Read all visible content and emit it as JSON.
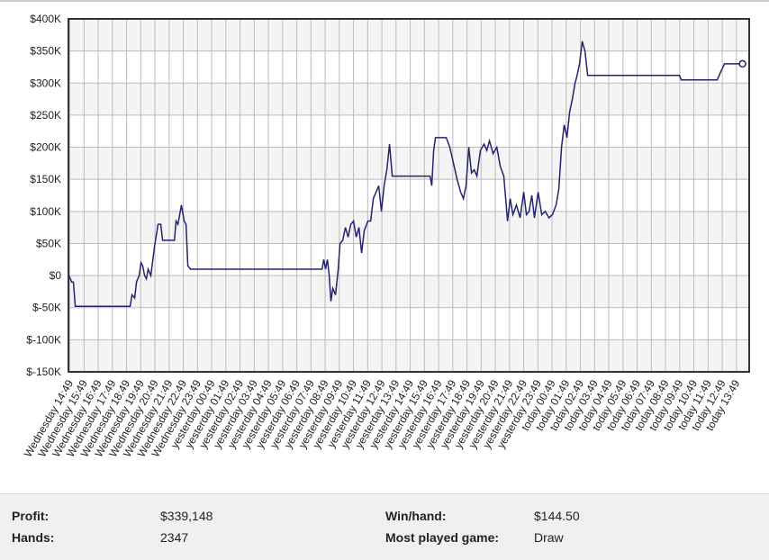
{
  "chart_data": {
    "type": "line",
    "color": "#24246e",
    "grid": true,
    "xlim": [
      -0.1,
      47.9
    ],
    "xticks": [
      {
        "value": 0,
        "label": "Wednesday 14:49"
      },
      {
        "value": 1,
        "label": "Wednesday 15:49"
      },
      {
        "value": 2,
        "label": "Wednesday 16:49"
      },
      {
        "value": 3,
        "label": "Wednesday 17:49"
      },
      {
        "value": 4,
        "label": "Wednesday 18:49"
      },
      {
        "value": 5,
        "label": "Wednesday 19:49"
      },
      {
        "value": 6,
        "label": "Wednesday 20:49"
      },
      {
        "value": 7,
        "label": "Wednesday 21:49"
      },
      {
        "value": 8,
        "label": "Wednesday 22:49"
      },
      {
        "value": 9,
        "label": "Wednesday 23:49"
      },
      {
        "value": 10,
        "label": "yesterday 00:49"
      },
      {
        "value": 11,
        "label": "yesterday 01:49"
      },
      {
        "value": 12,
        "label": "yesterday 02:49"
      },
      {
        "value": 13,
        "label": "yesterday 03:49"
      },
      {
        "value": 14,
        "label": "yesterday 04:49"
      },
      {
        "value": 15,
        "label": "yesterday 05:49"
      },
      {
        "value": 16,
        "label": "yesterday 06:49"
      },
      {
        "value": 17,
        "label": "yesterday 07:49"
      },
      {
        "value": 18,
        "label": "yesterday 08:49"
      },
      {
        "value": 19,
        "label": "yesterday 09:49"
      },
      {
        "value": 20,
        "label": "yesterday 10:49"
      },
      {
        "value": 21,
        "label": "yesterday 11:49"
      },
      {
        "value": 22,
        "label": "yesterday 12:49"
      },
      {
        "value": 23,
        "label": "yesterday 13:49"
      },
      {
        "value": 24,
        "label": "yesterday 14:49"
      },
      {
        "value": 25,
        "label": "yesterday 15:49"
      },
      {
        "value": 26,
        "label": "yesterday 16:49"
      },
      {
        "value": 27,
        "label": "yesterday 17:49"
      },
      {
        "value": 28,
        "label": "yesterday 18:49"
      },
      {
        "value": 29,
        "label": "yesterday 19:49"
      },
      {
        "value": 30,
        "label": "yesterday 20:49"
      },
      {
        "value": 31,
        "label": "yesterday 21:49"
      },
      {
        "value": 32,
        "label": "yesterday 22:49"
      },
      {
        "value": 33,
        "label": "yesterday 23:49"
      },
      {
        "value": 34,
        "label": "today 00:49"
      },
      {
        "value": 35,
        "label": "today 01:49"
      },
      {
        "value": 36,
        "label": "today 02:49"
      },
      {
        "value": 37,
        "label": "today 03:49"
      },
      {
        "value": 38,
        "label": "today 04:49"
      },
      {
        "value": 39,
        "label": "today 05:49"
      },
      {
        "value": 40,
        "label": "today 06:49"
      },
      {
        "value": 41,
        "label": "today 07:49"
      },
      {
        "value": 42,
        "label": "today 08:49"
      },
      {
        "value": 43,
        "label": "today 09:49"
      },
      {
        "value": 44,
        "label": "today 10:49"
      },
      {
        "value": 45,
        "label": "today 11:49"
      },
      {
        "value": 46,
        "label": "today 12:49"
      },
      {
        "value": 47,
        "label": "today 13:49"
      }
    ],
    "ylim": [
      -150000,
      400000
    ],
    "yticks": [
      {
        "value": -150000,
        "label": "$-150K"
      },
      {
        "value": -100000,
        "label": "$-100K"
      },
      {
        "value": -50000,
        "label": "$-50K"
      },
      {
        "value": 0,
        "label": "$0"
      },
      {
        "value": 50000,
        "label": "$50K"
      },
      {
        "value": 100000,
        "label": "$100K"
      },
      {
        "value": 150000,
        "label": "$150K"
      },
      {
        "value": 200000,
        "label": "$200K"
      },
      {
        "value": 250000,
        "label": "$250K"
      },
      {
        "value": 300000,
        "label": "$300K"
      },
      {
        "value": 350000,
        "label": "$350K"
      },
      {
        "value": 400000,
        "label": "$400K"
      }
    ],
    "x": [
      -0.06,
      0.13,
      0.25,
      0.38,
      4.25,
      4.38,
      4.57,
      4.7,
      4.89,
      5.02,
      5.14,
      5.27,
      5.4,
      5.52,
      5.71,
      5.97,
      6.22,
      6.41,
      6.54,
      7.37,
      7.49,
      7.62,
      7.87,
      8.06,
      8.19,
      8.32,
      8.51,
      17.78,
      17.9,
      18.03,
      18.16,
      18.29,
      18.41,
      18.54,
      18.73,
      18.92,
      19.05,
      19.24,
      19.43,
      19.62,
      19.81,
      20.0,
      20.19,
      20.38,
      20.57,
      20.76,
      21.02,
      21.21,
      21.4,
      21.59,
      21.78,
      21.97,
      22.16,
      22.35,
      22.54,
      22.73,
      25.4,
      25.52,
      25.65,
      25.78,
      26.54,
      26.79,
      27.05,
      27.3,
      27.56,
      27.75,
      27.94,
      28.13,
      28.32,
      28.51,
      28.7,
      28.95,
      29.21,
      29.4,
      29.59,
      29.84,
      30.1,
      30.35,
      30.6,
      30.86,
      31.05,
      31.24,
      31.49,
      31.75,
      32.0,
      32.19,
      32.38,
      32.57,
      32.76,
      33.02,
      33.27,
      33.52,
      33.78,
      34.03,
      34.29,
      34.48,
      34.67,
      34.86,
      35.05,
      35.24,
      35.43,
      35.62,
      35.75,
      35.94,
      36.13,
      36.32,
      36.51,
      42.98,
      43.11,
      45.65,
      45.84,
      46.16,
      47.43
    ],
    "values": [
      0,
      -10000,
      -10000,
      -48000,
      -48000,
      -30000,
      -35000,
      -10000,
      0,
      20000,
      15000,
      0,
      -5000,
      10000,
      0,
      45000,
      80000,
      80000,
      55000,
      55000,
      85000,
      80000,
      110000,
      85000,
      80000,
      15000,
      10000,
      10000,
      25000,
      10000,
      25000,
      0,
      -40000,
      -20000,
      -30000,
      10000,
      50000,
      55000,
      75000,
      60000,
      80000,
      85000,
      60000,
      75000,
      35000,
      70000,
      85000,
      85000,
      120000,
      130000,
      140000,
      100000,
      140000,
      165000,
      205000,
      155000,
      155000,
      140000,
      195000,
      215000,
      215000,
      200000,
      175000,
      150000,
      130000,
      120000,
      140000,
      200000,
      160000,
      165000,
      155000,
      195000,
      205000,
      195000,
      210000,
      190000,
      200000,
      170000,
      155000,
      85000,
      120000,
      95000,
      110000,
      90000,
      130000,
      95000,
      100000,
      125000,
      90000,
      130000,
      95000,
      100000,
      90000,
      95000,
      110000,
      135000,
      200000,
      235000,
      215000,
      255000,
      275000,
      300000,
      310000,
      330000,
      365000,
      350000,
      312000,
      312000,
      305000,
      305000,
      315000,
      330000,
      330000
    ]
  },
  "stats": [
    {
      "label": "Profit:",
      "value": "$339,148"
    },
    {
      "label": "Win/hand:",
      "value": "$144.50"
    },
    {
      "label": "Hands:",
      "value": "2347"
    },
    {
      "label": "Most played game:",
      "value": "Draw"
    }
  ]
}
